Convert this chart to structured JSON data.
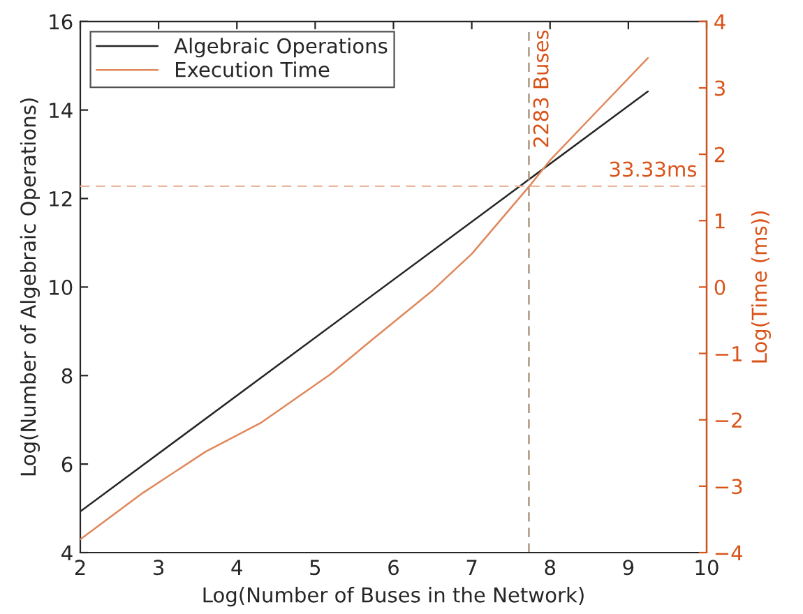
{
  "chart_data": {
    "type": "line",
    "xlabel": "Log(Number of Buses in the Network)",
    "ylabel": "Log(Number of Algebraic Operations)",
    "y2label": "Log(Time (ms))",
    "series": [
      {
        "name": "Algebraic Operations",
        "color": "#262626",
        "x": [
          2,
          9.25
        ],
        "values": [
          4.93,
          14.42
        ]
      },
      {
        "name": "Execution Time",
        "color": "#e0875a",
        "axis": "y2",
        "x": [
          2,
          2.8,
          3.6,
          4.3,
          5.2,
          5.71,
          6.5,
          7,
          7.75,
          8,
          8.6,
          9.25
        ],
        "values": [
          -3.8,
          -3.1,
          -2.48,
          -2.05,
          -1.31,
          -0.81,
          -0.05,
          0.5,
          1.54,
          1.91,
          2.65,
          3.45
        ]
      }
    ],
    "xlim": [
      2,
      10
    ],
    "xticks": [
      2,
      3,
      4,
      5,
      6,
      7,
      8,
      9,
      10
    ],
    "ylim": [
      4,
      16
    ],
    "yticks": [
      4,
      6,
      8,
      10,
      12,
      14,
      16
    ],
    "y2lim": [
      -4,
      4
    ],
    "y2ticks": [
      {
        "value": -4,
        "label": "−4"
      },
      {
        "value": -3,
        "label": "−3"
      },
      {
        "value": -2,
        "label": "−2"
      },
      {
        "value": -1,
        "label": "−1"
      },
      0,
      1,
      2,
      3,
      4
    ],
    "ref_lines": [
      {
        "axis": "x",
        "value": 7.73,
        "label": "2283 Buses",
        "color": "#a08870",
        "line_style": "dashed"
      },
      {
        "axis": "y2",
        "value": 1.52,
        "label": "33.33ms",
        "color": "#e8b89a",
        "line_style": "dashed"
      }
    ],
    "legend": "top left",
    "grid": false
  }
}
